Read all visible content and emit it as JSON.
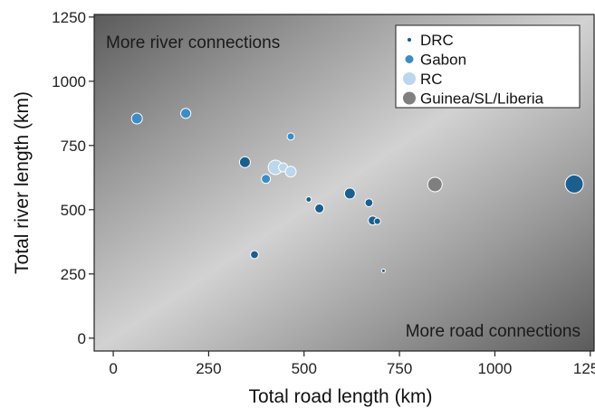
{
  "chart_data": {
    "type": "scatter",
    "xlabel": "Total road length (km)",
    "ylabel": "Total river length (km)",
    "xlim": [
      -50,
      1260
    ],
    "ylim": [
      -50,
      1260
    ],
    "xticks": [
      0,
      250,
      500,
      750,
      1000,
      1250
    ],
    "yticks": [
      0,
      250,
      500,
      750,
      1000,
      1250
    ],
    "grid": false,
    "background": "diagonal gradient, dark at top-left and bottom-right corners, light along the diagonal",
    "annotations": [
      {
        "text": "More river connections",
        "position": "top-left"
      },
      {
        "text": "More road connections",
        "position": "bottom-right"
      }
    ],
    "legend": {
      "placement": "top-right"
    },
    "series": [
      {
        "name": "DRC",
        "color": "#1b5f8f",
        "points": [
          {
            "x": 345,
            "y": 685,
            "size": 3
          },
          {
            "x": 620,
            "y": 563,
            "size": 3
          },
          {
            "x": 1208,
            "y": 600,
            "size": 5
          },
          {
            "x": 540,
            "y": 505,
            "size": 2.5
          },
          {
            "x": 670,
            "y": 527,
            "size": 2.2
          },
          {
            "x": 512,
            "y": 540,
            "size": 1.5
          },
          {
            "x": 680,
            "y": 458,
            "size": 2.5
          },
          {
            "x": 692,
            "y": 455,
            "size": 1.8
          },
          {
            "x": 370,
            "y": 325,
            "size": 2.2
          },
          {
            "x": 708,
            "y": 262,
            "size": 1
          }
        ]
      },
      {
        "name": "Gabon",
        "color": "#3d8cc4",
        "points": [
          {
            "x": 62,
            "y": 855,
            "size": 3
          },
          {
            "x": 190,
            "y": 875,
            "size": 2.8
          },
          {
            "x": 465,
            "y": 785,
            "size": 2
          },
          {
            "x": 400,
            "y": 620,
            "size": 2.5
          }
        ]
      },
      {
        "name": "RC",
        "color": "#bcd6ee",
        "points": [
          {
            "x": 425,
            "y": 665,
            "size": 4
          },
          {
            "x": 445,
            "y": 665,
            "size": 2.5
          },
          {
            "x": 465,
            "y": 648,
            "size": 3
          }
        ]
      },
      {
        "name": "Guinea/SL/Liberia",
        "color": "#7f7f7f",
        "points": [
          {
            "x": 843,
            "y": 598,
            "size": 4
          }
        ]
      }
    ]
  }
}
